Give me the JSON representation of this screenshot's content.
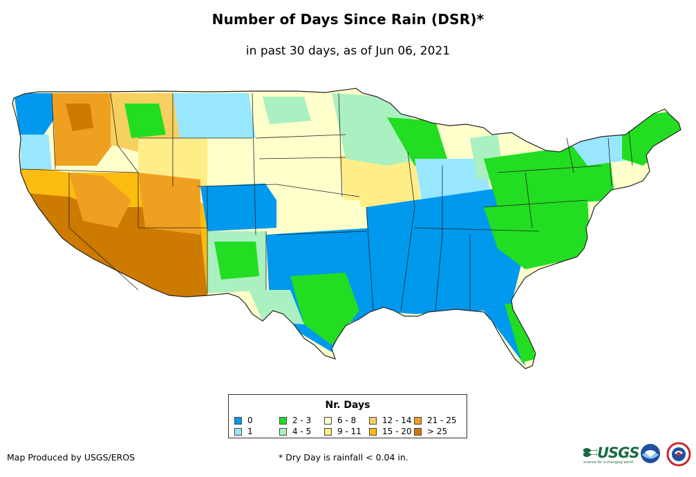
{
  "title": "Number of Days Since Rain (DSR)*",
  "subtitle": "in past 30 days, as of Jun 06, 2021",
  "legend": {
    "title": "Nr. Days",
    "items": [
      {
        "label": "0",
        "color": "#0099ee"
      },
      {
        "label": "1",
        "color": "#99e6ff"
      },
      {
        "label": "2 - 3",
        "color": "#22dd22"
      },
      {
        "label": "4 - 5",
        "color": "#aaf0c0"
      },
      {
        "label": "6 - 8",
        "color": "#ffffcc"
      },
      {
        "label": "9 - 11",
        "color": "#ffee88"
      },
      {
        "label": "12 - 14",
        "color": "#f6d060"
      },
      {
        "label": "15 - 20",
        "color": "#fcbc10"
      },
      {
        "label": "21 - 25",
        "color": "#f0a020"
      },
      {
        "label": "> 25",
        "color": "#cc7a00"
      }
    ]
  },
  "credit": "Map Produced by USGS/EROS",
  "footnote": "* Dry Day is rainfall < 0.04 in.",
  "logos": {
    "usgs": "USGS",
    "usgs_tagline": "science for a changing world",
    "noaa_icon": "noaa-logo",
    "nws_icon": "nws-logo"
  }
}
